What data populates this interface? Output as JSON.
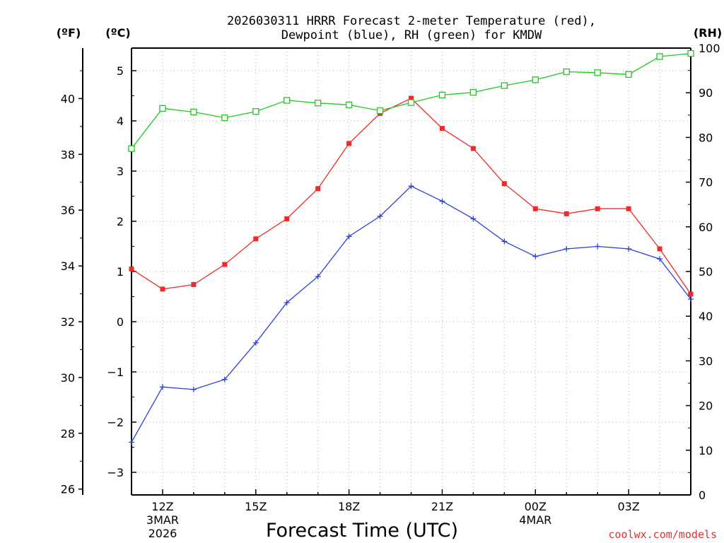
{
  "chart_data": {
    "type": "line",
    "title_line1": "2026030311 HRRR Forecast 2-meter Temperature (red),",
    "title_line2": "Dewpoint (blue), RH (green) for KMDW",
    "xlabel": "Forecast Time (UTC)",
    "y_left_outer_label": "(ºF)",
    "y_left_inner_label": "(ºC)",
    "y_right_label": "(RH)",
    "credit": "coolwx.com/models",
    "hours": [
      11,
      12,
      13,
      14,
      15,
      16,
      17,
      18,
      19,
      20,
      21,
      22,
      23,
      24,
      25,
      26,
      27,
      28,
      29
    ],
    "x_ticks": [
      {
        "hour": 12,
        "label": "12Z",
        "sub1": "3MAR",
        "sub2": "2026"
      },
      {
        "hour": 15,
        "label": "15Z",
        "sub1": "",
        "sub2": ""
      },
      {
        "hour": 18,
        "label": "18Z",
        "sub1": "",
        "sub2": ""
      },
      {
        "hour": 21,
        "label": "21Z",
        "sub1": "",
        "sub2": ""
      },
      {
        "hour": 24,
        "label": "00Z",
        "sub1": "4MAR",
        "sub2": ""
      },
      {
        "hour": 27,
        "label": "03Z",
        "sub1": "",
        "sub2": ""
      }
    ],
    "xlim": [
      11,
      29
    ],
    "celsius_lim": [
      -3.45,
      5.45
    ],
    "celsius_ticks": [
      "5",
      "4",
      "3",
      "2",
      "1",
      "0",
      "−1",
      "−2",
      "−3"
    ],
    "fahrenheit_ticks": [
      "40",
      "38",
      "36",
      "34",
      "32",
      "30",
      "28",
      "26"
    ],
    "rh_lim": [
      0,
      100
    ],
    "rh_ticks": [
      "100",
      "90",
      "80",
      "70",
      "60",
      "50",
      "40",
      "30",
      "20",
      "10",
      "0"
    ],
    "series": [
      {
        "name": "Temperature",
        "unit": "C",
        "color": "#ee2a2a",
        "values": [
          1.05,
          0.65,
          0.74,
          1.14,
          1.65,
          2.05,
          2.65,
          3.55,
          4.15,
          4.45,
          3.85,
          3.45,
          2.75,
          2.25,
          2.15,
          2.25,
          2.25,
          1.45,
          0.55
        ]
      },
      {
        "name": "Dewpoint",
        "unit": "C",
        "color": "#2a3fdd",
        "values": [
          -2.4,
          -1.3,
          -1.35,
          -1.15,
          -0.42,
          0.38,
          0.9,
          1.7,
          2.1,
          2.7,
          2.4,
          2.05,
          1.6,
          1.3,
          1.45,
          1.5,
          1.45,
          1.25,
          0.45
        ]
      },
      {
        "name": "RH",
        "unit": "%",
        "color": "#1ccc1c",
        "values": [
          77.5,
          86.5,
          85.7,
          84.4,
          85.8,
          88.3,
          87.7,
          87.3,
          86.0,
          87.8,
          89.5,
          90.1,
          91.6,
          92.9,
          94.7,
          94.5,
          94.1,
          98.1,
          98.8
        ]
      }
    ]
  }
}
